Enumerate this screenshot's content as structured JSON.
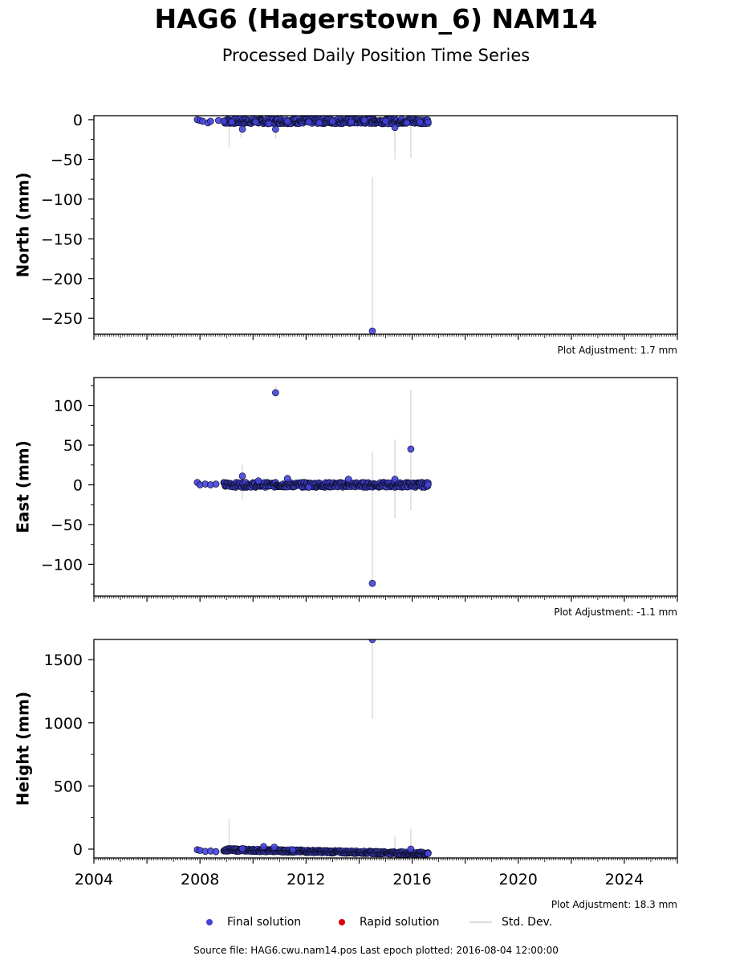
{
  "header": {
    "title": "HAG6 (Hagerstown_6) NAM14",
    "subtitle": "Processed Daily Position Time Series"
  },
  "footer": {
    "source": "Source file: HAG6.cwu.nam14.pos  Last epoch plotted: 2016-08-04 12:00:00"
  },
  "legend": {
    "final_label": "Final solution",
    "rapid_label": "Rapid solution",
    "stddev_label": "Std. Dev.",
    "final_color": "#4444dd",
    "rapid_color": "#dd0000",
    "stddev_color": "#dcdcdc"
  },
  "chart_data": [
    {
      "type": "scatter",
      "ylabel": "North (mm)",
      "adjustment": "Plot Adjustment: 1.7 mm",
      "ylim": [
        -270,
        5
      ],
      "yticks": [
        0,
        -50,
        -100,
        -150,
        -200,
        -250
      ],
      "xlim": [
        2004,
        2026
      ],
      "band": {
        "x_start": 2008.9,
        "x_end": 2016.6,
        "center": -2,
        "spread": 3
      },
      "series": [
        {
          "points": [
            [
              2007.9,
              0
            ],
            [
              2008.0,
              -1
            ],
            [
              2008.1,
              -2
            ],
            [
              2008.3,
              -4
            ],
            [
              2008.4,
              -2
            ],
            [
              2008.7,
              -1
            ],
            [
              2008.9,
              -2
            ],
            [
              2009.2,
              -3
            ],
            [
              2009.6,
              -12
            ],
            [
              2010.1,
              -3
            ],
            [
              2010.6,
              -5
            ],
            [
              2010.85,
              -12
            ],
            [
              2011.3,
              -2
            ],
            [
              2012.1,
              -3
            ],
            [
              2012.5,
              -4
            ],
            [
              2013.0,
              -2
            ],
            [
              2013.7,
              -3
            ],
            [
              2014.2,
              -1
            ],
            [
              2014.5,
              -266
            ],
            [
              2015.0,
              -2
            ],
            [
              2015.35,
              -10
            ],
            [
              2015.8,
              -4
            ],
            [
              2016.3,
              -3
            ],
            [
              2016.6,
              -3
            ]
          ]
        }
      ],
      "errorbars": [
        [
          2009.1,
          -35,
          2
        ],
        [
          2009.55,
          -22,
          -2
        ],
        [
          2010.85,
          -24,
          -6
        ],
        [
          2014.5,
          -266,
          -72
        ],
        [
          2015.35,
          -50,
          -5
        ],
        [
          2015.95,
          -48,
          -3
        ]
      ]
    },
    {
      "type": "scatter",
      "ylabel": "East (mm)",
      "adjustment": "Plot Adjustment: -1.1 mm",
      "ylim": [
        -140,
        135
      ],
      "yticks": [
        100,
        50,
        0,
        -50,
        -100
      ],
      "xlim": [
        2004,
        2026
      ],
      "band": {
        "x_start": 2008.9,
        "x_end": 2016.6,
        "center": 0,
        "spread": 3
      },
      "series": [
        {
          "points": [
            [
              2007.9,
              3
            ],
            [
              2008.0,
              0
            ],
            [
              2008.2,
              1
            ],
            [
              2008.4,
              0
            ],
            [
              2008.6,
              1
            ],
            [
              2009.6,
              11
            ],
            [
              2010.2,
              5
            ],
            [
              2010.85,
              116
            ],
            [
              2011.3,
              8
            ],
            [
              2012.1,
              -3
            ],
            [
              2013.6,
              7
            ],
            [
              2014.5,
              -124
            ],
            [
              2015.35,
              7
            ],
            [
              2015.95,
              45
            ],
            [
              2016.6,
              0
            ]
          ]
        }
      ],
      "errorbars": [
        [
          2009.6,
          -18,
          25
        ],
        [
          2010.85,
          110,
          124
        ],
        [
          2014.5,
          -124,
          42
        ],
        [
          2015.35,
          -42,
          57
        ],
        [
          2015.95,
          -32,
          120
        ]
      ]
    },
    {
      "type": "scatter",
      "ylabel": "Height (mm)",
      "adjustment": "Plot Adjustment: 18.3 mm",
      "ylim": [
        -70,
        1660
      ],
      "yticks": [
        1500,
        1000,
        500,
        0
      ],
      "xlim": [
        2004,
        2026
      ],
      "xticks": [
        2004,
        2008,
        2012,
        2016,
        2020,
        2024
      ],
      "band": {
        "x_start": 2008.9,
        "x_end": 2016.6,
        "center_start": -5,
        "center_end": -35,
        "spread": 10
      },
      "series": [
        {
          "points": [
            [
              2007.9,
              -5
            ],
            [
              2008.0,
              -10
            ],
            [
              2008.2,
              -18
            ],
            [
              2008.4,
              -15
            ],
            [
              2008.6,
              -20
            ],
            [
              2009.6,
              5
            ],
            [
              2010.4,
              20
            ],
            [
              2010.8,
              15
            ],
            [
              2011.5,
              -5
            ],
            [
              2014.5,
              1660
            ],
            [
              2015.95,
              0
            ],
            [
              2016.6,
              -35
            ]
          ]
        }
      ],
      "errorbars": [
        [
          2009.1,
          -15,
          240
        ],
        [
          2014.5,
          1030,
          1660
        ],
        [
          2015.35,
          -20,
          100
        ],
        [
          2015.95,
          -30,
          160
        ]
      ]
    }
  ]
}
